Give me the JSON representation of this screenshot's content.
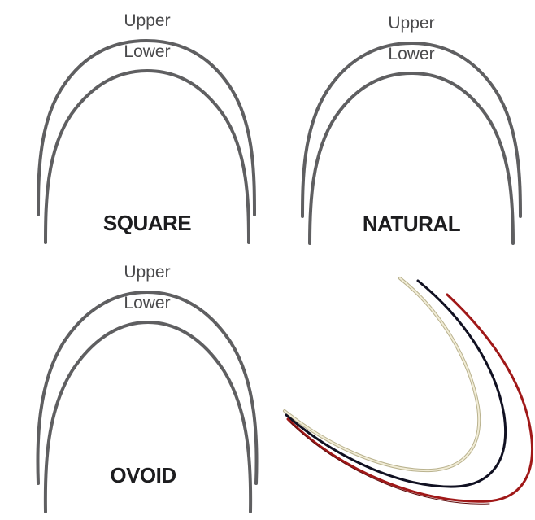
{
  "panels": {
    "square": {
      "upper_label": "Upper",
      "lower_label": "Lower",
      "form_label": "SQUARE"
    },
    "natural": {
      "upper_label": "Upper",
      "lower_label": "Lower",
      "form_label": "NATURAL"
    },
    "ovoid": {
      "upper_label": "Upper",
      "lower_label": "Lower",
      "form_label": "OVOID"
    }
  },
  "photo": {
    "wires": [
      {
        "name": "ivory-wire",
        "color": "#e8e2c8"
      },
      {
        "name": "black-wire",
        "color": "#111122"
      },
      {
        "name": "red-wire",
        "color": "#a01818"
      }
    ]
  },
  "colors": {
    "arch_stroke": "#5f5f61",
    "text": "#4a4a4c",
    "title": "#1d1d1f"
  }
}
